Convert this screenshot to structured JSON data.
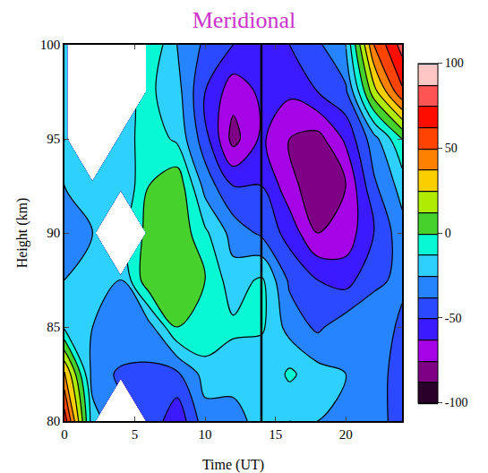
{
  "chart_data": {
    "type": "contour",
    "title": "Meridional",
    "x_label": "Time (UT)",
    "y_label": "Height (km)",
    "x": [
      0,
      2,
      4,
      6,
      8,
      10,
      12,
      14,
      16,
      18,
      20,
      22,
      24
    ],
    "y": [
      80,
      82.5,
      85,
      87.5,
      90,
      92.5,
      95,
      97.5,
      100
    ],
    "z": [
      [
        70,
        -20,
        null,
        -40,
        -60,
        -30,
        -30,
        -20,
        -25,
        -25,
        -30,
        -35,
        -40
      ],
      [
        40,
        -30,
        -40,
        -40,
        -40,
        -20,
        -20,
        -25,
        -10,
        -20,
        -25,
        -35,
        -40
      ],
      [
        -15,
        -25,
        -25,
        -30,
        0,
        0,
        -10,
        -10,
        -30,
        -40,
        -30,
        -30,
        -40
      ],
      [
        -25,
        -20,
        -25,
        10,
        5,
        0,
        -20,
        -10,
        -40,
        -50,
        -55,
        -40,
        -35
      ],
      [
        -30,
        -25,
        null,
        5,
        10,
        -10,
        -30,
        -40,
        -55,
        -75,
        -70,
        -50,
        -30
      ],
      [
        -25,
        -20,
        -25,
        0,
        10,
        -30,
        -50,
        -50,
        -70,
        -85,
        -75,
        -40,
        -20
      ],
      [
        -25,
        null,
        -20,
        -5,
        -15,
        -45,
        -80,
        -60,
        -75,
        -80,
        -60,
        -30,
        0
      ],
      [
        -20,
        null,
        null,
        -10,
        -20,
        -50,
        -70,
        -60,
        -60,
        -50,
        -40,
        20,
        60
      ],
      [
        -25,
        null,
        null,
        0,
        -25,
        -40,
        -50,
        -60,
        -50,
        -40,
        -25,
        50,
        80
      ]
    ],
    "xlim": [
      0,
      24
    ],
    "ylim": [
      80,
      100
    ],
    "xticks": [
      0,
      5,
      10,
      15,
      20
    ],
    "yticks": [
      80,
      85,
      90,
      95,
      100
    ],
    "colorbar_range": [
      -100,
      100
    ],
    "colorbar_ticks": [
      -100,
      -50,
      0,
      50,
      100
    ],
    "vertical_line_x": 14
  }
}
